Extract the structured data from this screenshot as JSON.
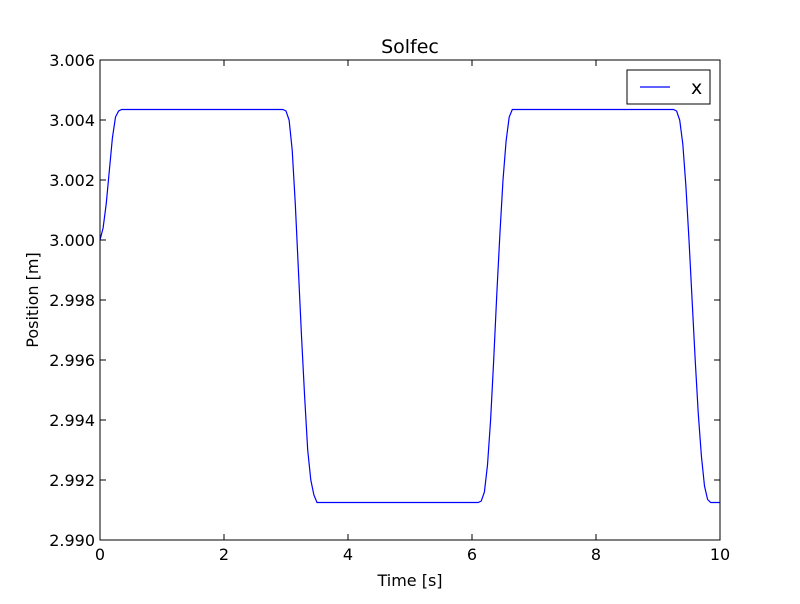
{
  "chart_data": {
    "type": "line",
    "title": "Solfec",
    "xlabel": "Time [s]",
    "ylabel": "Position [m]",
    "xlim": [
      0,
      10
    ],
    "ylim": [
      2.99,
      3.006
    ],
    "xticks": [
      "0",
      "2",
      "4",
      "6",
      "8",
      "10"
    ],
    "xtick_values": [
      0,
      2,
      4,
      6,
      8,
      10
    ],
    "yticks": [
      "2.990",
      "2.992",
      "2.994",
      "2.996",
      "2.998",
      "3.000",
      "3.002",
      "3.004",
      "3.006"
    ],
    "ytick_values": [
      2.99,
      2.992,
      2.994,
      2.996,
      2.998,
      3.0,
      3.002,
      3.004,
      3.006
    ],
    "grid": false,
    "legend": "top-right",
    "series": [
      {
        "name": "x",
        "color": "#0000ff",
        "x": [
          0.0,
          0.05,
          0.1,
          0.15,
          0.2,
          0.25,
          0.3,
          0.35,
          2.9,
          2.95,
          3.0,
          3.05,
          3.1,
          3.15,
          3.2,
          3.25,
          3.3,
          3.35,
          3.4,
          3.45,
          3.5,
          3.55,
          6.1,
          6.15,
          6.2,
          6.25,
          6.3,
          6.35,
          6.4,
          6.45,
          6.5,
          6.55,
          6.6,
          6.65,
          6.7,
          9.2,
          9.25,
          9.3,
          9.35,
          9.4,
          9.45,
          9.5,
          9.55,
          9.6,
          9.65,
          9.7,
          9.75,
          9.8,
          9.85,
          10.0
        ],
        "y": [
          3.0,
          3.0004,
          3.0012,
          3.0023,
          3.0034,
          3.0041,
          3.0043,
          3.00435,
          3.00435,
          3.00435,
          3.0043,
          3.004,
          3.003,
          3.0012,
          2.999,
          2.9968,
          2.9948,
          2.993,
          2.992,
          2.9915,
          2.99125,
          2.99125,
          2.99125,
          2.9913,
          2.9916,
          2.9925,
          2.994,
          2.996,
          2.9982,
          3.0002,
          3.002,
          3.0033,
          3.0041,
          3.00435,
          3.00435,
          3.00435,
          3.00435,
          3.0043,
          3.004,
          3.0032,
          3.0018,
          3.0,
          2.998,
          2.996,
          2.9942,
          2.9928,
          2.9918,
          2.99135,
          2.99125,
          2.99125
        ]
      }
    ]
  }
}
